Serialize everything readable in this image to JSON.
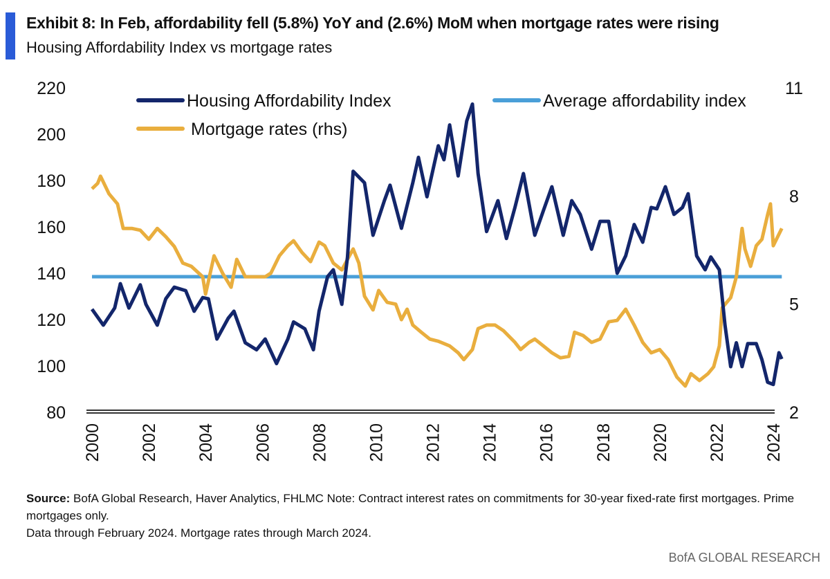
{
  "title": "Exhibit 8: In Feb, affordability fell (5.8%) YoY and (2.6%) MoM when mortgage rates were rising",
  "subtitle": "Housing Affordability Index vs mortgage rates",
  "source_label": "Source:",
  "source_text": " BofA Global Research, Haver Analytics, FHLMC Note: Contract interest rates on commitments for 30-year fixed-rate first mortgages. Prime mortgages only.",
  "note": "Data through February 2024. Mortgage rates through March 2024.",
  "brand": "BofA GLOBAL RESEARCH",
  "chart_data": {
    "type": "line",
    "title": "",
    "legend_placement": "top",
    "grid": false,
    "xlim": [
      2000,
      2024
    ],
    "x_ticks": [
      "2000",
      "2002",
      "2004",
      "2006",
      "2008",
      "2010",
      "2012",
      "2014",
      "2016",
      "2018",
      "2020",
      "2022",
      "2024"
    ],
    "y_left": {
      "range": [
        80,
        220
      ],
      "ticks": [
        "80",
        "100",
        "120",
        "140",
        "160",
        "180",
        "200",
        "220"
      ]
    },
    "y_right": {
      "range": [
        2,
        11
      ],
      "ticks": [
        "2",
        "5",
        "8",
        "11"
      ]
    },
    "series": [
      {
        "name": "Housing Affordability Index",
        "axis": "left",
        "color": "#13266b",
        "x": [
          2000.0,
          2000.4,
          2000.8,
          2001.0,
          2001.3,
          2001.7,
          2001.9,
          2002.3,
          2002.6,
          2002.9,
          2003.3,
          2003.6,
          2003.9,
          2004.1,
          2004.4,
          2004.8,
          2005.0,
          2005.4,
          2005.8,
          2006.1,
          2006.5,
          2006.9,
          2007.1,
          2007.5,
          2007.8,
          2008.0,
          2008.3,
          2008.5,
          2008.8,
          2009.0,
          2009.2,
          2009.6,
          2009.9,
          2010.3,
          2010.5,
          2010.9,
          2011.3,
          2011.5,
          2011.8,
          2012.2,
          2012.4,
          2012.6,
          2012.9,
          2013.2,
          2013.4,
          2013.6,
          2013.9,
          2014.3,
          2014.6,
          2014.9,
          2015.2,
          2015.6,
          2015.9,
          2016.2,
          2016.6,
          2016.9,
          2017.2,
          2017.6,
          2017.9,
          2018.2,
          2018.5,
          2018.8,
          2019.1,
          2019.4,
          2019.7,
          2019.9,
          2020.2,
          2020.5,
          2020.8,
          2021.0,
          2021.3,
          2021.6,
          2021.8,
          2022.1,
          2022.3,
          2022.5,
          2022.7,
          2022.9,
          2023.1,
          2023.4,
          2023.6,
          2023.8,
          2024.0,
          2024.2,
          2024.3
        ],
        "values": [
          124.5,
          117.6,
          125,
          135.5,
          125,
          135,
          126.6,
          117.6,
          129,
          134,
          132.5,
          123.6,
          129.5,
          129,
          111.6,
          120.6,
          123.6,
          110,
          107,
          111.6,
          101,
          111.6,
          119,
          116,
          107,
          123.6,
          138.5,
          141.5,
          126.6,
          147,
          184,
          179,
          156.4,
          171.3,
          178,
          159.4,
          179,
          190,
          173,
          195,
          189,
          204,
          182,
          205.7,
          213,
          183,
          158,
          171.3,
          155,
          168.4,
          183,
          156.4,
          167,
          177.3,
          156.4,
          171.3,
          165.4,
          150.4,
          162.4,
          162.4,
          140,
          147.5,
          161,
          153.4,
          168.4,
          167.8,
          177.3,
          165.4,
          168.4,
          174.3,
          147.5,
          141.5,
          147,
          141.5,
          117.6,
          99.7,
          110,
          99.7,
          109.6,
          109.6,
          102.7,
          93,
          92,
          105.7,
          103
        ]
      },
      {
        "name": "Average affordability index",
        "axis": "left",
        "color": "#4a9fd8",
        "x": [
          2000,
          2024.3
        ],
        "values": [
          138.5,
          138.5
        ]
      },
      {
        "name": "Mortgage rates (rhs)",
        "axis": "right",
        "color": "#e9ae3e",
        "x": [
          2000.0,
          2000.2,
          2000.3,
          2000.6,
          2000.9,
          2001.1,
          2001.4,
          2001.7,
          2002.0,
          2002.3,
          2002.6,
          2002.9,
          2003.2,
          2003.5,
          2003.9,
          2004.0,
          2004.3,
          2004.6,
          2004.9,
          2005.1,
          2005.4,
          2005.8,
          2006.1,
          2006.3,
          2006.6,
          2006.9,
          2007.1,
          2007.4,
          2007.7,
          2008.0,
          2008.2,
          2008.5,
          2008.8,
          2009.0,
          2009.2,
          2009.4,
          2009.6,
          2009.9,
          2010.1,
          2010.4,
          2010.7,
          2010.9,
          2011.1,
          2011.3,
          2011.6,
          2011.9,
          2012.2,
          2012.6,
          2012.9,
          2013.1,
          2013.4,
          2013.6,
          2013.9,
          2014.2,
          2014.5,
          2014.9,
          2015.1,
          2015.4,
          2015.6,
          2015.9,
          2016.2,
          2016.5,
          2016.8,
          2017.0,
          2017.3,
          2017.6,
          2017.9,
          2018.2,
          2018.5,
          2018.8,
          2019.1,
          2019.4,
          2019.7,
          2020.0,
          2020.3,
          2020.6,
          2020.9,
          2021.1,
          2021.4,
          2021.7,
          2021.9,
          2022.1,
          2022.2,
          2022.5,
          2022.7,
          2022.9,
          2023.0,
          2023.2,
          2023.4,
          2023.6,
          2023.8,
          2023.9,
          2024.0,
          2024.3
        ],
        "values": [
          8.2,
          8.35,
          8.55,
          8.06,
          7.78,
          7.1,
          7.1,
          7.05,
          6.8,
          7.1,
          6.87,
          6.6,
          6.14,
          6.05,
          5.76,
          5.28,
          6.34,
          5.86,
          5.47,
          6.24,
          5.76,
          5.76,
          5.76,
          5.86,
          6.34,
          6.62,
          6.76,
          6.43,
          6.18,
          6.72,
          6.62,
          6.14,
          5.95,
          6.24,
          6.53,
          6.14,
          5.22,
          4.84,
          5.38,
          5.05,
          5.0,
          4.57,
          4.86,
          4.42,
          4.22,
          4.03,
          3.97,
          3.84,
          3.65,
          3.46,
          3.74,
          4.32,
          4.42,
          4.42,
          4.26,
          3.94,
          3.74,
          3.94,
          4.03,
          3.84,
          3.65,
          3.51,
          3.55,
          4.22,
          4.13,
          3.94,
          4.03,
          4.51,
          4.55,
          4.86,
          4.42,
          3.94,
          3.65,
          3.74,
          3.46,
          2.98,
          2.73,
          3.07,
          2.88,
          3.07,
          3.26,
          3.84,
          4.9,
          5.18,
          5.76,
          7.1,
          6.53,
          6.05,
          6.62,
          6.8,
          7.48,
          7.78,
          6.62,
          7.1
        ]
      }
    ]
  }
}
